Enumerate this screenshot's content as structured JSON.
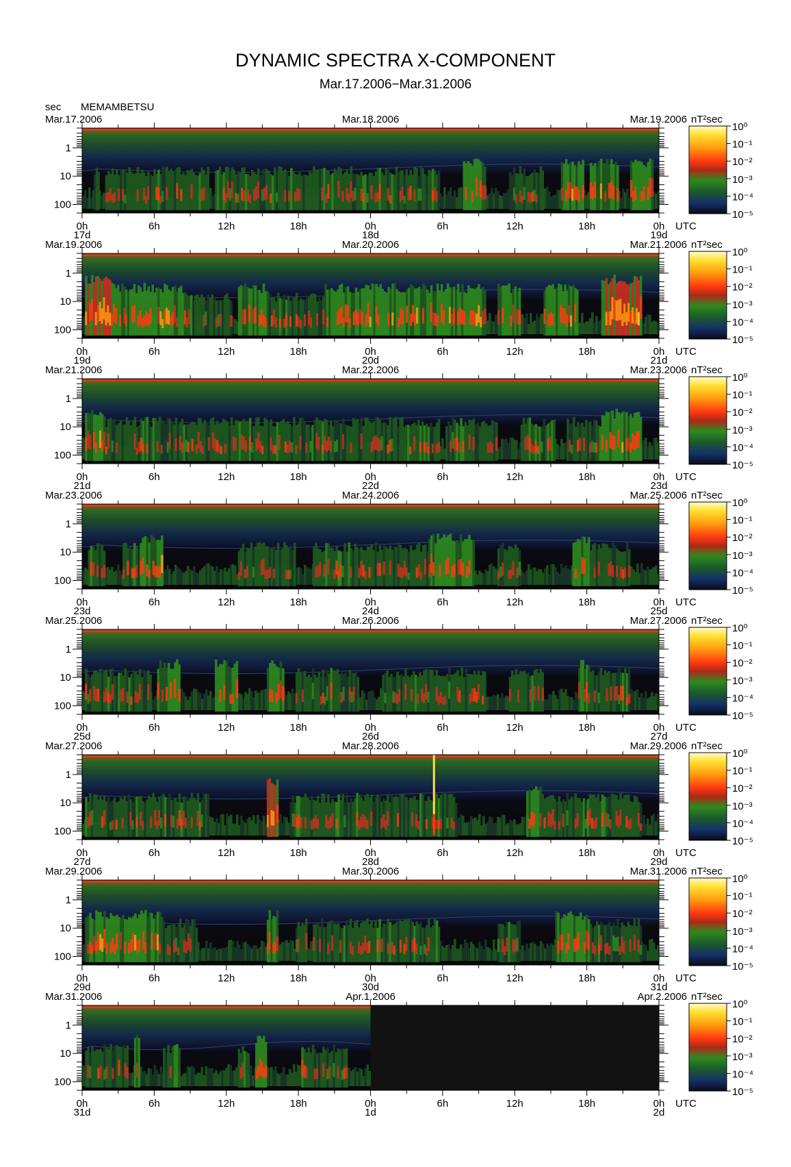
{
  "title": "DYNAMIC SPECTRA X-COMPONENT",
  "subtitle": "Mar.17.2006−Mar.31.2006",
  "station": "MEMAMBETSU",
  "period_unit": "sec",
  "colorbar_unit": "nT²sec",
  "time_unit": "UTC",
  "y_ticks": [
    "1",
    "10",
    "100"
  ],
  "x_hour_ticks": [
    "0h",
    "6h",
    "12h",
    "18h",
    "0h",
    "6h",
    "12h",
    "18h",
    "0h"
  ],
  "colorbar_ticks": [
    "10⁰",
    "10⁻¹",
    "10⁻²",
    "10⁻³",
    "10⁻⁴",
    "10⁻⁵"
  ],
  "colors": {
    "no_data": "#121212",
    "colormap": [
      "#0a0a14",
      "#101a38",
      "#1a3a2a",
      "#1f5a1f",
      "#2e8a1e",
      "#c83020",
      "#ff3a10",
      "#ff9a10",
      "#ffe030",
      "#fff8b0"
    ]
  },
  "chart_data": {
    "type": "heatmap",
    "title": "DYNAMIC SPECTRA X-COMPONENT",
    "subtitle": "Mar.17.2006−Mar.31.2006",
    "ylabel": "sec",
    "y_scale": "log",
    "y_reversed": true,
    "ylim": [
      0.2,
      200
    ],
    "xlabel": "UTC",
    "colorbar": {
      "label": "nT²sec",
      "scale": "log",
      "range": [
        1e-05,
        1
      ]
    },
    "panels": [
      {
        "start_label": "Mar.17.2006",
        "mid_label": "Mar.18.2006",
        "end_label": "Mar.19.2006",
        "day_labels": [
          "17d",
          "18d",
          "19d"
        ],
        "data_fraction": 1.0,
        "bursts": [
          [
            0.02,
            0.03,
            1
          ],
          [
            0.04,
            0.12,
            1
          ],
          [
            0.12,
            0.22,
            1
          ],
          [
            0.23,
            0.3,
            1
          ],
          [
            0.3,
            0.45,
            1
          ],
          [
            0.45,
            0.55,
            1
          ],
          [
            0.55,
            0.62,
            1
          ],
          [
            0.66,
            0.7,
            2
          ],
          [
            0.74,
            0.8,
            1
          ],
          [
            0.83,
            0.87,
            2
          ],
          [
            0.88,
            0.93,
            2
          ],
          [
            0.95,
            0.99,
            2
          ]
        ]
      },
      {
        "start_label": "Mar.19.2006",
        "mid_label": "Mar.20.2006",
        "end_label": "Mar.21.2006",
        "day_labels": [
          "19d",
          "20d",
          "21d"
        ],
        "data_fraction": 1.0,
        "bursts": [
          [
            0.005,
            0.05,
            3
          ],
          [
            0.05,
            0.18,
            2
          ],
          [
            0.18,
            0.26,
            1
          ],
          [
            0.27,
            0.32,
            2
          ],
          [
            0.32,
            0.42,
            1
          ],
          [
            0.42,
            0.6,
            2
          ],
          [
            0.6,
            0.7,
            2
          ],
          [
            0.72,
            0.76,
            2
          ],
          [
            0.8,
            0.86,
            2
          ],
          [
            0.9,
            0.97,
            3
          ]
        ]
      },
      {
        "start_label": "Mar.21.2006",
        "mid_label": "Mar.22.2006",
        "end_label": "Mar.23.2006",
        "day_labels": [
          "21d",
          "22d",
          "23d"
        ],
        "data_fraction": 1.0,
        "bursts": [
          [
            0.005,
            0.04,
            2
          ],
          [
            0.04,
            0.2,
            1
          ],
          [
            0.2,
            0.3,
            1
          ],
          [
            0.3,
            0.38,
            1
          ],
          [
            0.38,
            0.5,
            1
          ],
          [
            0.5,
            0.62,
            1
          ],
          [
            0.63,
            0.72,
            1
          ],
          [
            0.76,
            0.82,
            1
          ],
          [
            0.84,
            0.9,
            1
          ],
          [
            0.9,
            0.97,
            2
          ]
        ]
      },
      {
        "start_label": "Mar.23.2006",
        "mid_label": "Mar.24.2006",
        "end_label": "Mar.25.2006",
        "day_labels": [
          "23d",
          "24d",
          "25d"
        ],
        "data_fraction": 1.0,
        "bursts": [
          [
            0.01,
            0.04,
            1
          ],
          [
            0.07,
            0.1,
            1
          ],
          [
            0.1,
            0.14,
            2
          ],
          [
            0.27,
            0.37,
            1
          ],
          [
            0.4,
            0.5,
            1
          ],
          [
            0.5,
            0.6,
            1
          ],
          [
            0.6,
            0.68,
            2
          ],
          [
            0.72,
            0.76,
            1
          ],
          [
            0.85,
            0.88,
            2
          ],
          [
            0.88,
            0.95,
            1
          ]
        ]
      },
      {
        "start_label": "Mar.25.2006",
        "mid_label": "Mar.26.2006",
        "end_label": "Mar.27.2006",
        "day_labels": [
          "25d",
          "26d",
          "27d"
        ],
        "data_fraction": 1.0,
        "bursts": [
          [
            0.005,
            0.04,
            1
          ],
          [
            0.04,
            0.12,
            1
          ],
          [
            0.13,
            0.17,
            2
          ],
          [
            0.23,
            0.27,
            2
          ],
          [
            0.32,
            0.35,
            2
          ],
          [
            0.37,
            0.43,
            1
          ],
          [
            0.43,
            0.48,
            1
          ],
          [
            0.52,
            0.58,
            1
          ],
          [
            0.58,
            0.62,
            1
          ],
          [
            0.62,
            0.7,
            1
          ],
          [
            0.74,
            0.8,
            1
          ],
          [
            0.86,
            0.88,
            2
          ],
          [
            0.88,
            0.95,
            1
          ]
        ]
      },
      {
        "start_label": "Mar.27.2006",
        "mid_label": "Mar.28.2006",
        "end_label": "Mar.29.2006",
        "day_labels": [
          "27d",
          "28d",
          "29d"
        ],
        "data_fraction": 1.0,
        "bursts": [
          [
            0.005,
            0.1,
            1
          ],
          [
            0.1,
            0.22,
            1
          ],
          [
            0.32,
            0.34,
            3
          ],
          [
            0.36,
            0.45,
            1
          ],
          [
            0.45,
            0.56,
            1
          ],
          [
            0.56,
            0.62,
            1
          ],
          [
            0.62,
            0.65,
            1
          ],
          [
            0.77,
            0.8,
            2
          ],
          [
            0.8,
            0.9,
            1
          ],
          [
            0.9,
            0.97,
            1
          ]
        ],
        "spikes": [
          [
            0.61,
            4
          ]
        ]
      },
      {
        "start_label": "Mar.29.2006",
        "mid_label": "Mar.30.2006",
        "end_label": "Mar.31.2006",
        "day_labels": [
          "29d",
          "30d",
          "31d"
        ],
        "data_fraction": 1.0,
        "bursts": [
          [
            0.005,
            0.14,
            2
          ],
          [
            0.14,
            0.2,
            1
          ],
          [
            0.32,
            0.34,
            2
          ],
          [
            0.37,
            0.39,
            1
          ],
          [
            0.4,
            0.46,
            1
          ],
          [
            0.46,
            0.55,
            1
          ],
          [
            0.55,
            0.62,
            1
          ],
          [
            0.72,
            0.76,
            1
          ],
          [
            0.82,
            0.88,
            2
          ],
          [
            0.88,
            0.97,
            1
          ]
        ]
      },
      {
        "start_label": "Mar.31.2006",
        "mid_label": "Apr.1.2006",
        "end_label": "Apr.2.2006",
        "day_labels": [
          "31d",
          "1d",
          "2d"
        ],
        "data_fraction": 0.5,
        "bursts": [
          [
            0.005,
            0.08,
            1
          ],
          [
            0.09,
            0.1,
            2
          ],
          [
            0.14,
            0.17,
            1
          ],
          [
            0.27,
            0.29,
            1
          ],
          [
            0.3,
            0.32,
            2
          ],
          [
            0.38,
            0.46,
            1
          ]
        ]
      }
    ]
  }
}
